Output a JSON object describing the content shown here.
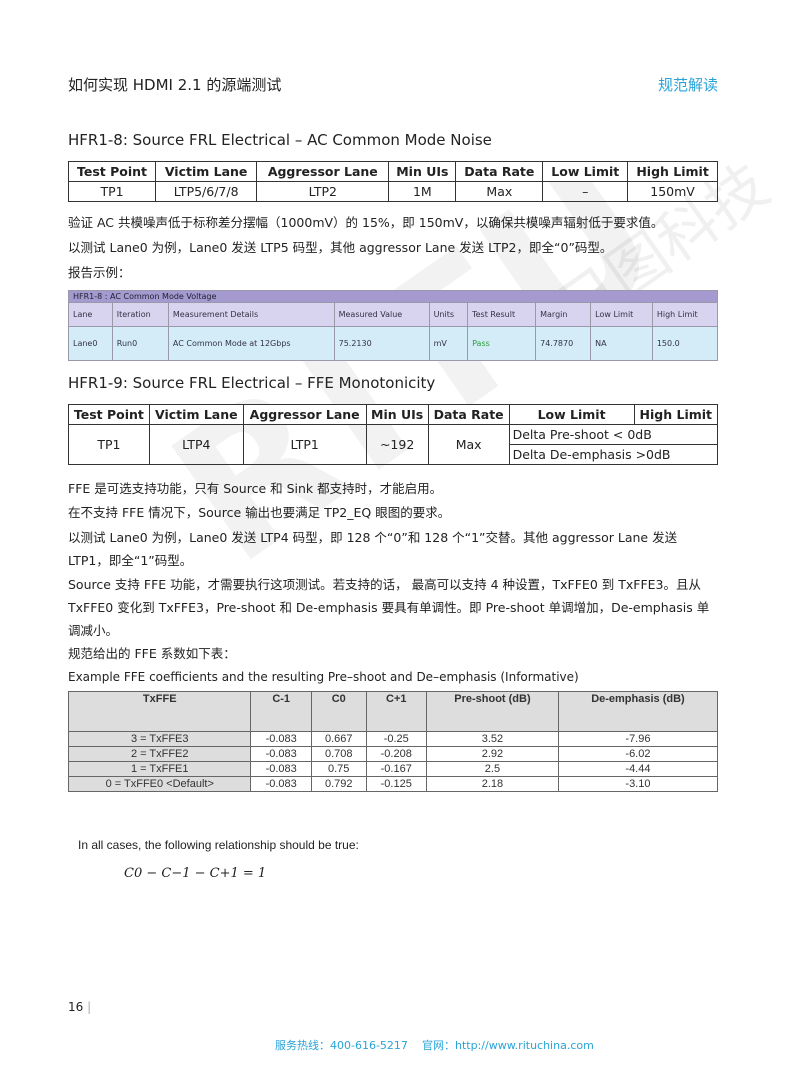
{
  "header": {
    "title": "如何实现 HDMI 2.1 的源端测试",
    "section": "规范解读"
  },
  "watermark": {
    "latin": "RITU",
    "chinese": "日图科技"
  },
  "hfr18": {
    "heading": "HFR1-8: Source FRL Electrical – AC Common Mode Noise",
    "columns": [
      "Test Point",
      "Victim Lane",
      "Aggressor Lane",
      "Min UIs",
      "Data Rate",
      "Low Limit",
      "High Limit"
    ],
    "row": [
      "TP1",
      "LTP5/6/7/8",
      "LTP2",
      "1M",
      "Max",
      "–",
      "150mV"
    ],
    "paragraphs": [
      "验证 AC 共模噪声低于标称差分摆幅（1000mV）的 15%，即 150mV，以确保共模噪声辐射低于要求值。",
      "以测试 Lane0 为例，Lane0 发送 LTP5 码型，其他 aggressor  Lane 发送 LTP2，即全“0”码型。",
      "报告示例："
    ],
    "report": {
      "title": "HFR1-8 : AC Common Mode Voltage",
      "columns": [
        "Lane",
        "Iteration",
        "Measurement Details",
        "Measured Value",
        "Units",
        "Test Result",
        "Margin",
        "Low Limit",
        "High Limit"
      ],
      "row": [
        "Lane0",
        "Run0",
        "AC Common Mode at 12Gbps",
        "75.2130",
        "mV",
        "Pass",
        "74.7870",
        "NA",
        "150.0"
      ],
      "pass_color": "#2a9d3a"
    }
  },
  "hfr19": {
    "heading": "HFR1-9: Source FRL Electrical – FFE Monotonicity",
    "columns": [
      "Test Point",
      "Victim Lane",
      "Aggressor Lane",
      "Min UIs",
      "Data Rate",
      "Low Limit",
      "High Limit"
    ],
    "row": [
      "TP1",
      "LTP4",
      "LTP1",
      "~192",
      "Max"
    ],
    "low_limits": [
      "Delta Pre-shoot < 0dB",
      "Delta De-emphasis >0dB"
    ],
    "paragraphs": [
      "FFE 是可选支持功能，只有 Source 和 Sink 都支持时，才能启用。",
      "在不支持 FFE 情况下，Source 输出也要满足 TP2_EQ 眼图的要求。",
      "以测试 Lane0 为例，Lane0 发送 LTP4 码型，即 128 个“0”和 128 个“1”交替。其他 aggressor Lane 发送 LTP1，即全“1”码型。",
      "Source 支持 FFE 功能，才需要执行这项测试。若支持的话， 最高可以支持 4 种设置，TxFFE0 到 TxFFE3。且从 TxFFE0 变化到 TxFFE3，Pre-shoot 和 De-emphasis 要具有单调性。即 Pre-shoot 单调增加，De-emphasis 单调减小。",
      "规范给出的 FFE 系数如下表："
    ],
    "ffe_caption": "Example FFE coefficients and the resulting Pre–shoot and De–emphasis (Informative)",
    "ffe_columns": [
      "TxFFE",
      "C-1",
      "C0",
      "C+1",
      "Pre-shoot (dB)",
      "De-emphasis (dB)"
    ],
    "ffe_rows": [
      [
        "3 = TxFFE3",
        "-0.083",
        "0.667",
        "-0.25",
        "3.52",
        "-7.96"
      ],
      [
        "2 = TxFFE2",
        "-0.083",
        "0.708",
        "-0.208",
        "2.92",
        "-6.02"
      ],
      [
        "1 = TxFFE1",
        "-0.083",
        "0.75",
        "-0.167",
        "2.5",
        "-4.44"
      ],
      [
        "0 = TxFFE0 <Default>",
        "-0.083",
        "0.792",
        "-0.125",
        "2.18",
        "-3.10"
      ]
    ],
    "relationship_note": "In all cases, the following relationship should be true:",
    "formula": "C0 − C−1 − C+1 = 1"
  },
  "footer": {
    "page": "16",
    "hotline": "服务热线：400-616-5217",
    "website": "官网：http://www.rituchina.com"
  }
}
